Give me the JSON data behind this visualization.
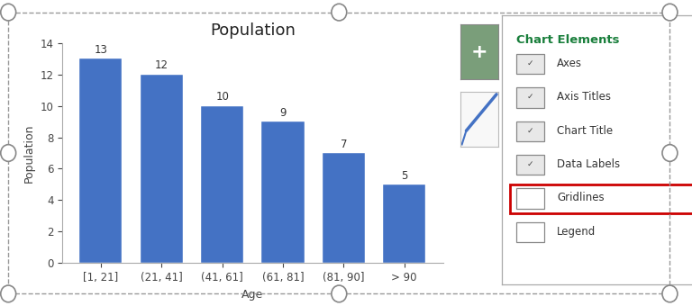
{
  "categories": [
    "[1, 21]",
    "(21, 41]",
    "(41, 61]",
    "(61, 81]",
    "(81, 90]",
    "> 90"
  ],
  "values": [
    13,
    12,
    10,
    9,
    7,
    5
  ],
  "bar_color": "#4472C4",
  "bar_edge_color": "#ffffff",
  "title": "Population",
  "xlabel": "Age",
  "ylabel": "Population",
  "ylim": [
    0,
    14
  ],
  "yticks": [
    0,
    2,
    4,
    6,
    8,
    10,
    12,
    14
  ],
  "title_fontsize": 13,
  "label_fontsize": 9,
  "tick_fontsize": 8.5,
  "data_label_fontsize": 8.5,
  "chart_elements_title": "Chart Elements",
  "chart_elements_items": [
    "Axes",
    "Axis Titles",
    "Chart Title",
    "Data Labels",
    "Gridlines",
    "Legend"
  ],
  "checked_items": [
    true,
    true,
    true,
    true,
    false,
    false
  ],
  "bg_color": "#ffffff",
  "btn_color": "#7a9e7a",
  "green_text_color": "#1a7f3c",
  "checked_bg": "#e8e8e8",
  "border_color": "#999999",
  "handle_color": "#888888",
  "red_highlight": "#cc0000",
  "panel_border_color": "#aaaaaa",
  "spine_color": "#aaaaaa"
}
